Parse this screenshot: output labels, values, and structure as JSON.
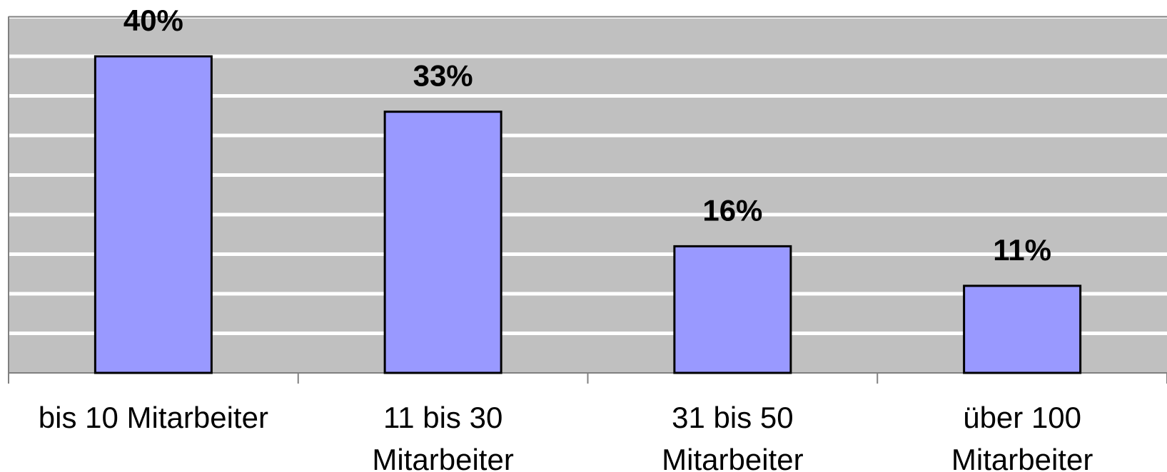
{
  "chart_data": {
    "type": "bar",
    "categories": [
      [
        "bis 10 Mitarbeiter"
      ],
      [
        "11 bis 30",
        "Mitarbeiter"
      ],
      [
        "31 bis 50",
        "Mitarbeiter"
      ],
      [
        "über 100",
        "Mitarbeiter"
      ]
    ],
    "values": [
      40,
      33,
      16,
      11
    ],
    "value_labels": [
      "40%",
      "33%",
      "16%",
      "11%"
    ],
    "ylim": [
      0,
      45
    ],
    "grid": true,
    "colors": {
      "bar_fill": "#9999FF",
      "bar_stroke": "#000000",
      "plot_background": "#C0C0C0",
      "gridline": "#FFFFFF",
      "axis": "#808080"
    }
  }
}
